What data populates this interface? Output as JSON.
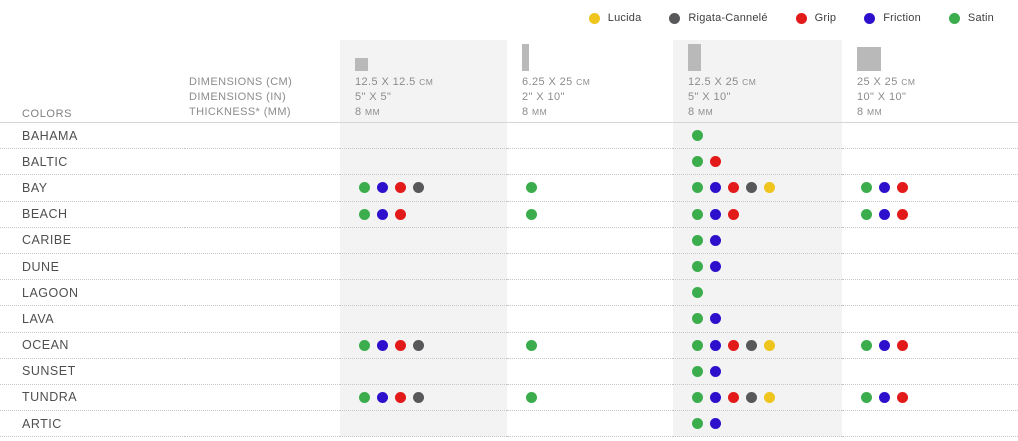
{
  "finish_colors": {
    "lucida": "#eec41d",
    "rigata": "#58585a",
    "grip": "#e31a1a",
    "friction": "#2d10cc",
    "satin": "#3bad4c"
  },
  "legend": {
    "items": [
      {
        "key": "lucida",
        "name": "Lucida"
      },
      {
        "key": "rigata",
        "name": "Rigata-Cannelé"
      },
      {
        "key": "grip",
        "name": "Grip"
      },
      {
        "key": "friction",
        "name": "Friction"
      },
      {
        "key": "satin",
        "name": "Satin"
      }
    ]
  },
  "header": {
    "colors_label": "COLORS",
    "dimension_labels": [
      "DIMENSIONS (CM)",
      "DIMENSIONS (IN)",
      "THICKNESS* (MM)"
    ]
  },
  "columns": [
    {
      "cm": "12.5 X 12.5",
      "cm_unit": "CM",
      "in": "5\" X 5\"",
      "mm": "8",
      "mm_unit": "MM",
      "shaded": true,
      "tile": {
        "w": 13,
        "h": 13
      }
    },
    {
      "cm": "6.25 X 25",
      "cm_unit": "CM",
      "in": "2\" X 10\"",
      "mm": "8",
      "mm_unit": "MM",
      "shaded": false,
      "tile": {
        "w": 7,
        "h": 27
      }
    },
    {
      "cm": "12.5 X 25",
      "cm_unit": "CM",
      "in": "5\" X 10\"",
      "mm": "8",
      "mm_unit": "MM",
      "shaded": true,
      "tile": {
        "w": 13,
        "h": 27
      }
    },
    {
      "cm": "25 X 25",
      "cm_unit": "CM",
      "in": "10\" X 10\"",
      "mm": "8",
      "mm_unit": "MM",
      "shaded": false,
      "tile": {
        "w": 24,
        "h": 24
      }
    }
  ],
  "rows": [
    {
      "color": "BAHAMA",
      "cells": [
        [],
        [],
        [
          "satin"
        ],
        []
      ]
    },
    {
      "color": "BALTIC",
      "cells": [
        [],
        [],
        [
          "satin",
          "grip"
        ],
        []
      ]
    },
    {
      "color": "BAY",
      "cells": [
        [
          "satin",
          "friction",
          "grip",
          "rigata"
        ],
        [
          "satin"
        ],
        [
          "satin",
          "friction",
          "grip",
          "rigata",
          "lucida"
        ],
        [
          "satin",
          "friction",
          "grip"
        ]
      ]
    },
    {
      "color": "BEACH",
      "cells": [
        [
          "satin",
          "friction",
          "grip"
        ],
        [
          "satin"
        ],
        [
          "satin",
          "friction",
          "grip"
        ],
        [
          "satin",
          "friction",
          "grip"
        ]
      ]
    },
    {
      "color": "CARIBE",
      "cells": [
        [],
        [],
        [
          "satin",
          "friction"
        ],
        []
      ]
    },
    {
      "color": "DUNE",
      "cells": [
        [],
        [],
        [
          "satin",
          "friction"
        ],
        []
      ]
    },
    {
      "color": "LAGOON",
      "cells": [
        [],
        [],
        [
          "satin"
        ],
        []
      ]
    },
    {
      "color": "LAVA",
      "cells": [
        [],
        [],
        [
          "satin",
          "friction"
        ],
        []
      ]
    },
    {
      "color": "OCEAN",
      "cells": [
        [
          "satin",
          "friction",
          "grip",
          "rigata"
        ],
        [
          "satin"
        ],
        [
          "satin",
          "friction",
          "grip",
          "rigata",
          "lucida"
        ],
        [
          "satin",
          "friction",
          "grip"
        ]
      ]
    },
    {
      "color": "SUNSET",
      "cells": [
        [],
        [],
        [
          "satin",
          "friction"
        ],
        []
      ]
    },
    {
      "color": "TUNDRA",
      "cells": [
        [
          "satin",
          "friction",
          "grip",
          "rigata"
        ],
        [
          "satin"
        ],
        [
          "satin",
          "friction",
          "grip",
          "rigata",
          "lucida"
        ],
        [
          "satin",
          "friction",
          "grip"
        ]
      ]
    },
    {
      "color": "ARTIC",
      "cells": [
        [],
        [],
        [
          "satin",
          "friction"
        ],
        []
      ]
    }
  ]
}
